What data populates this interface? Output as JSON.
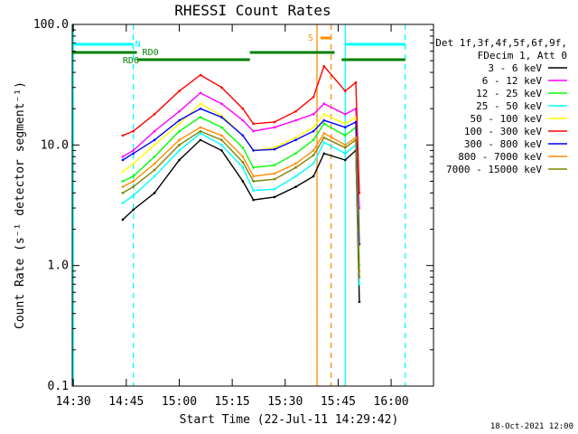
{
  "chart_data": {
    "type": "line",
    "title": "RHESSI Count Rates",
    "xlabel": "Start Time (22-Jul-11 14:29:42)",
    "ylabel": "Count Rate (s⁻¹ detector segment⁻¹)",
    "yscale": "log",
    "ylim": [
      0.1,
      100.0
    ],
    "xlim": [
      "14:29:42",
      "16:12"
    ],
    "x_tick_labels": [
      "14:30",
      "14:45",
      "15:00",
      "15:15",
      "15:30",
      "15:45",
      "16:00"
    ],
    "y_tick_labels": [
      "0.1",
      "1.0",
      "10.0",
      "100.0"
    ],
    "grid": false,
    "legend_position": "right",
    "legend_header": [
      "Det 1f,3f,4f,5f,6f,9f,",
      "FDecim 1, Att 0"
    ],
    "series": [
      {
        "name": "3 - 6 keV",
        "color": "#000000",
        "x": [
          "14:44",
          "14:47",
          "14:53",
          "15:00",
          "15:06",
          "15:12",
          "15:18",
          "15:21",
          "15:27",
          "15:33",
          "15:38",
          "15:41",
          "15:47",
          "15:50",
          "15:51"
        ],
        "values": [
          2.4,
          2.9,
          4.0,
          7.5,
          11.0,
          9.0,
          5.0,
          3.5,
          3.7,
          4.5,
          5.5,
          8.5,
          7.5,
          9.0,
          0.5
        ]
      },
      {
        "name": "6 - 12 keV",
        "color": "#ff00ff",
        "x": [
          "14:44",
          "14:47",
          "14:53",
          "15:00",
          "15:06",
          "15:12",
          "15:18",
          "15:21",
          "15:27",
          "15:33",
          "15:38",
          "15:41",
          "15:47",
          "15:50",
          "15:51"
        ],
        "values": [
          8.0,
          9.0,
          13.0,
          19.0,
          27.0,
          22.0,
          16.0,
          13.0,
          14.0,
          16.0,
          18.0,
          22.0,
          18.0,
          20.0,
          3.0
        ]
      },
      {
        "name": "12 - 25 keV",
        "color": "#00ff00",
        "x": [
          "14:44",
          "14:47",
          "14:53",
          "15:00",
          "15:06",
          "15:12",
          "15:18",
          "15:21",
          "15:27",
          "15:33",
          "15:38",
          "15:41",
          "15:47",
          "15:50",
          "15:51"
        ],
        "values": [
          5.0,
          5.5,
          8.0,
          13.0,
          17.0,
          14.0,
          9.5,
          6.5,
          6.8,
          8.5,
          11.0,
          15.0,
          12.0,
          14.0,
          1.0
        ]
      },
      {
        "name": "25 - 50 keV",
        "color": "#00ffff",
        "x": [
          "14:44",
          "14:47",
          "14:53",
          "15:00",
          "15:06",
          "15:12",
          "15:18",
          "15:21",
          "15:27",
          "15:33",
          "15:38",
          "15:41",
          "15:47",
          "15:50",
          "15:51"
        ],
        "values": [
          3.3,
          3.8,
          5.5,
          9.0,
          12.5,
          10.0,
          6.5,
          4.2,
          4.3,
          5.5,
          7.0,
          10.5,
          8.5,
          10.0,
          0.7
        ]
      },
      {
        "name": "50 - 100 keV",
        "color": "#ffff00",
        "x": [
          "14:44",
          "14:47",
          "14:53",
          "15:00",
          "15:06",
          "15:12",
          "15:18",
          "15:21",
          "15:27",
          "15:33",
          "15:38",
          "15:41",
          "15:47",
          "15:50",
          "15:51"
        ],
        "values": [
          6.0,
          7.0,
          10.0,
          15.0,
          22.0,
          17.5,
          12.0,
          9.0,
          9.5,
          11.5,
          14.0,
          18.0,
          15.0,
          17.0,
          2.0
        ]
      },
      {
        "name": "100 - 300 keV",
        "color": "#ff0000",
        "x": [
          "14:44",
          "14:47",
          "14:53",
          "15:00",
          "15:06",
          "15:12",
          "15:18",
          "15:21",
          "15:27",
          "15:33",
          "15:38",
          "15:41",
          "15:47",
          "15:50",
          "15:51"
        ],
        "values": [
          12.0,
          13.0,
          18.0,
          28.0,
          38.0,
          30.0,
          20.0,
          15.0,
          15.5,
          19.0,
          25.0,
          45.0,
          28.0,
          33.0,
          4.0
        ]
      },
      {
        "name": "300 - 800 keV",
        "color": "#0000ff",
        "x": [
          "14:44",
          "14:47",
          "14:53",
          "15:00",
          "15:06",
          "15:12",
          "15:18",
          "15:21",
          "15:27",
          "15:33",
          "15:38",
          "15:41",
          "15:47",
          "15:50",
          "15:51"
        ],
        "values": [
          7.5,
          8.5,
          11.0,
          16.0,
          20.0,
          17.0,
          12.0,
          9.0,
          9.2,
          11.0,
          13.0,
          16.0,
          14.0,
          15.5,
          1.5
        ]
      },
      {
        "name": "800 - 7000 keV",
        "color": "#ff8c00",
        "x": [
          "14:44",
          "14:47",
          "14:53",
          "15:00",
          "15:06",
          "15:12",
          "15:18",
          "15:21",
          "15:27",
          "15:33",
          "15:38",
          "15:41",
          "15:47",
          "15:50",
          "15:51"
        ],
        "values": [
          4.5,
          5.0,
          7.0,
          11.0,
          14.0,
          12.0,
          8.0,
          5.5,
          5.8,
          7.0,
          9.0,
          12.5,
          10.0,
          11.5,
          0.9
        ]
      },
      {
        "name": "7000 - 15000 keV",
        "color": "#808000",
        "x": [
          "14:44",
          "14:47",
          "14:53",
          "15:00",
          "15:06",
          "15:12",
          "15:18",
          "15:21",
          "15:27",
          "15:33",
          "15:38",
          "15:41",
          "15:47",
          "15:50",
          "15:51"
        ],
        "values": [
          4.0,
          4.5,
          6.2,
          10.0,
          13.0,
          11.0,
          7.2,
          5.0,
          5.2,
          6.5,
          8.2,
          11.5,
          9.5,
          11.0,
          0.8
        ]
      }
    ],
    "annotations": [
      {
        "label": "N",
        "color": "#00ffff",
        "from": "14:29:42",
        "to": "14:47",
        "start_line": "14:30",
        "end_line_dashed": "14:47"
      },
      {
        "label": "",
        "color": "#00ffff",
        "from": "15:47",
        "to": "16:04",
        "start_line": "15:47",
        "end_line_dashed": "16:04"
      },
      {
        "label": "S",
        "color": "#ff8c00",
        "from": "15:40",
        "to": "15:43",
        "start_line": "15:39",
        "end_line_dashed": "15:43"
      },
      {
        "label": "RD6",
        "color": "#008000",
        "from": "14:29:42",
        "to": "14:48"
      },
      {
        "label": "RD0",
        "color": "#008000",
        "from": "14:48",
        "to": "15:20"
      },
      {
        "label": "",
        "color": "#008000",
        "from": "15:20",
        "to": "15:44"
      },
      {
        "label": "",
        "color": "#008000",
        "from": "15:46",
        "to": "16:04"
      }
    ],
    "footer_date": "18-Oct-2021 12:00"
  }
}
